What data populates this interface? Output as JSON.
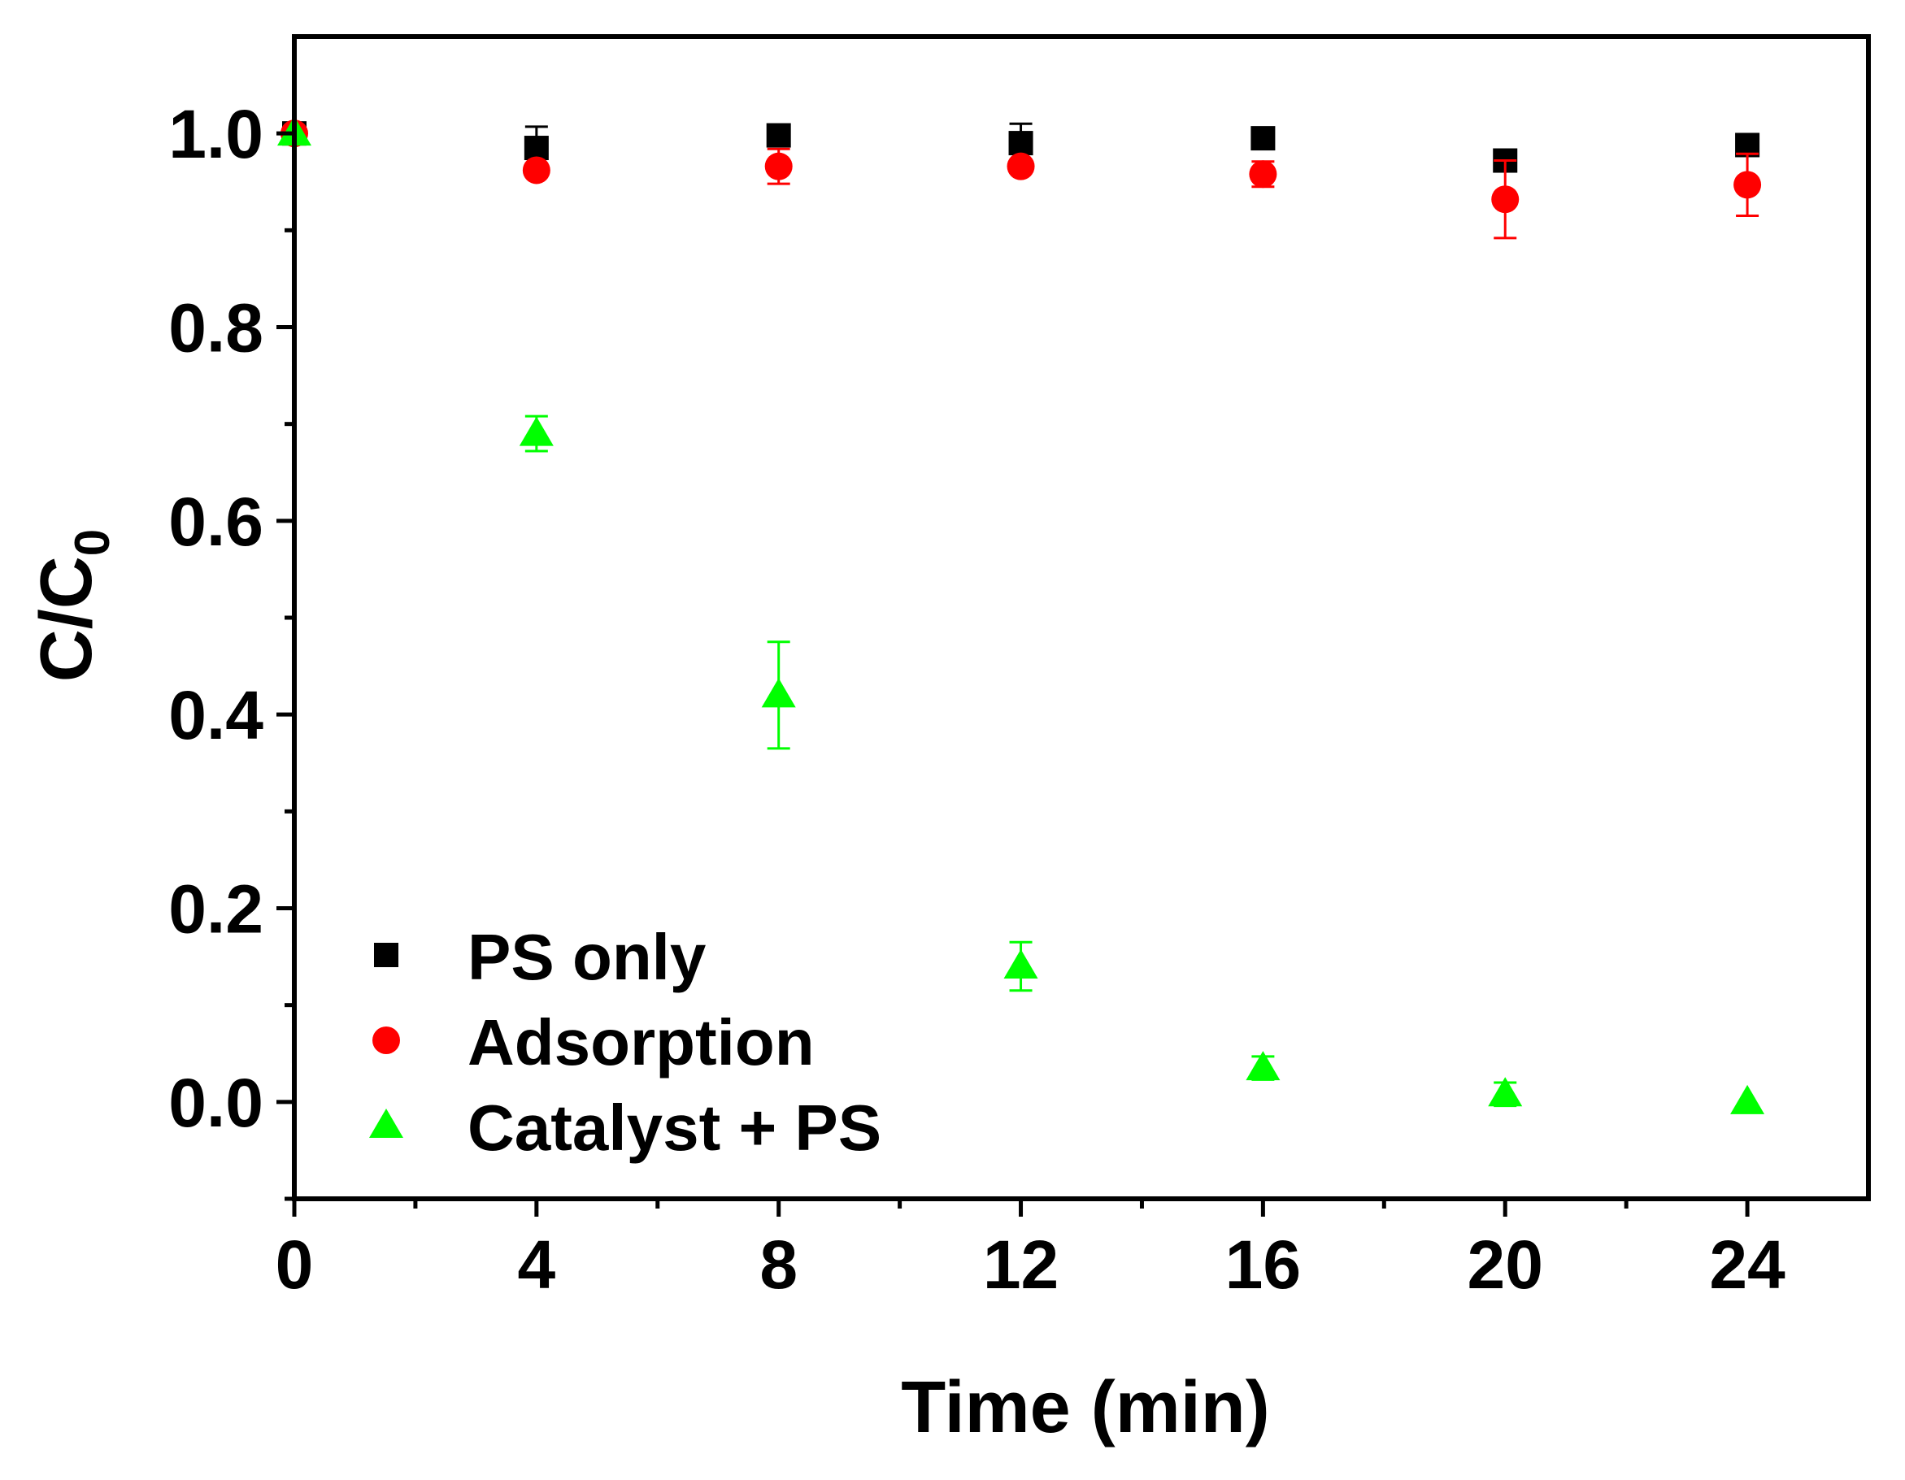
{
  "chart_data": {
    "type": "scatter",
    "title": "",
    "xlabel": "Time (min)",
    "ylabel": "C/C",
    "ylabel_subscript": "0",
    "xlim": [
      0,
      26
    ],
    "ylim": [
      -0.1,
      1.1
    ],
    "x_major_ticks": [
      0,
      4,
      8,
      12,
      16,
      20,
      24
    ],
    "x_minor_ticks": [
      2,
      6,
      10,
      14,
      18,
      22
    ],
    "x_tick_labels": [
      "0",
      "4",
      "8",
      "12",
      "16",
      "20",
      "24"
    ],
    "y_major_ticks": [
      0.0,
      0.2,
      0.4,
      0.6,
      0.8,
      1.0
    ],
    "y_minor_ticks": [
      -0.1,
      0.1,
      0.3,
      0.5,
      0.7,
      0.9
    ],
    "y_tick_labels": [
      "0.0",
      "0.2",
      "0.4",
      "0.6",
      "0.8",
      "1.0"
    ],
    "grid": false,
    "legend_position": "bottom-left",
    "series": [
      {
        "name": "PS only",
        "marker": "square",
        "color": "#000000",
        "x": [
          0,
          4,
          8,
          12,
          16,
          20,
          24
        ],
        "y": [
          1.0,
          0.985,
          0.998,
          0.99,
          0.995,
          0.972,
          0.988
        ],
        "err": [
          0.0,
          0.022,
          0.0,
          0.02,
          0.0,
          0.004,
          0.0
        ]
      },
      {
        "name": "Adsorption",
        "marker": "circle",
        "color": "#ff0000",
        "x": [
          0,
          4,
          8,
          12,
          16,
          20,
          24
        ],
        "y": [
          1.0,
          0.962,
          0.966,
          0.966,
          0.958,
          0.932,
          0.947
        ],
        "err": [
          0.0,
          0.0,
          0.018,
          0.0,
          0.013,
          0.04,
          0.032
        ]
      },
      {
        "name": "Catalyst + PS",
        "marker": "triangle",
        "color": "#00ff00",
        "x": [
          0,
          4,
          8,
          12,
          16,
          20,
          24
        ],
        "y": [
          1.0,
          0.69,
          0.42,
          0.14,
          0.035,
          0.008,
          0.0
        ],
        "err": [
          0.0,
          0.018,
          0.055,
          0.025,
          0.012,
          0.012,
          0.0
        ]
      }
    ]
  }
}
